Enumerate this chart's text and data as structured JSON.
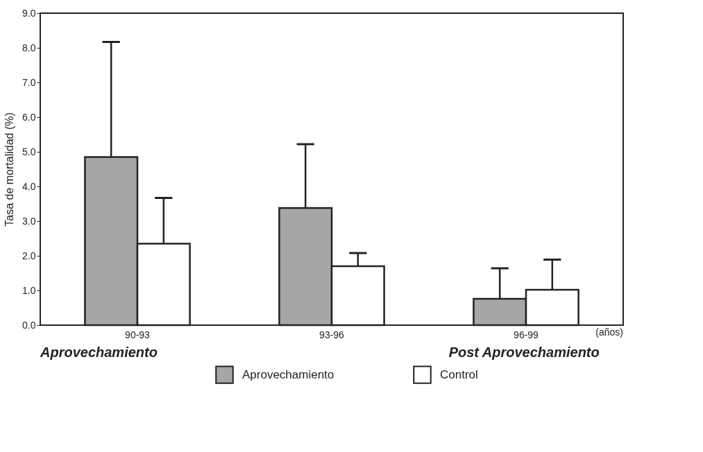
{
  "chart_data": {
    "type": "bar",
    "ylabel": "Tasa de mortalidad (%)",
    "categories": [
      "90-93",
      "93-96",
      "96-99"
    ],
    "series": [
      {
        "name": "Aprovechamiento",
        "color": "#a6a6a6",
        "values": [
          4.85,
          3.38,
          0.76
        ],
        "errors": [
          [
            4.85,
            8.17
          ],
          [
            3.38,
            5.22
          ],
          [
            0.76,
            1.64
          ]
        ]
      },
      {
        "name": "Control",
        "color": "#ffffff",
        "values": [
          2.35,
          1.7,
          1.02
        ],
        "errors": [
          [
            2.35,
            3.67
          ],
          [
            1.7,
            2.08
          ],
          [
            1.02,
            1.89
          ]
        ]
      }
    ],
    "ylim": [
      0,
      9
    ],
    "yticks": [
      {
        "value": 0,
        "label": "0.0"
      },
      {
        "value": 1,
        "label": "1.0"
      },
      {
        "value": 2,
        "label": "2.0"
      },
      {
        "value": 3,
        "label": "3.0"
      },
      {
        "value": 4,
        "label": "4.0"
      },
      {
        "value": 5,
        "label": "5.0"
      },
      {
        "value": 6,
        "label": "6.0"
      },
      {
        "value": 7,
        "label": "7.0"
      },
      {
        "value": 8,
        "label": "8.0"
      },
      {
        "value": 9,
        "label": "9.0"
      }
    ],
    "grid": false,
    "legend": "bottom",
    "annotations": [
      "(años)",
      "Aprovechamiento",
      "Post Aprovechamiento"
    ]
  }
}
